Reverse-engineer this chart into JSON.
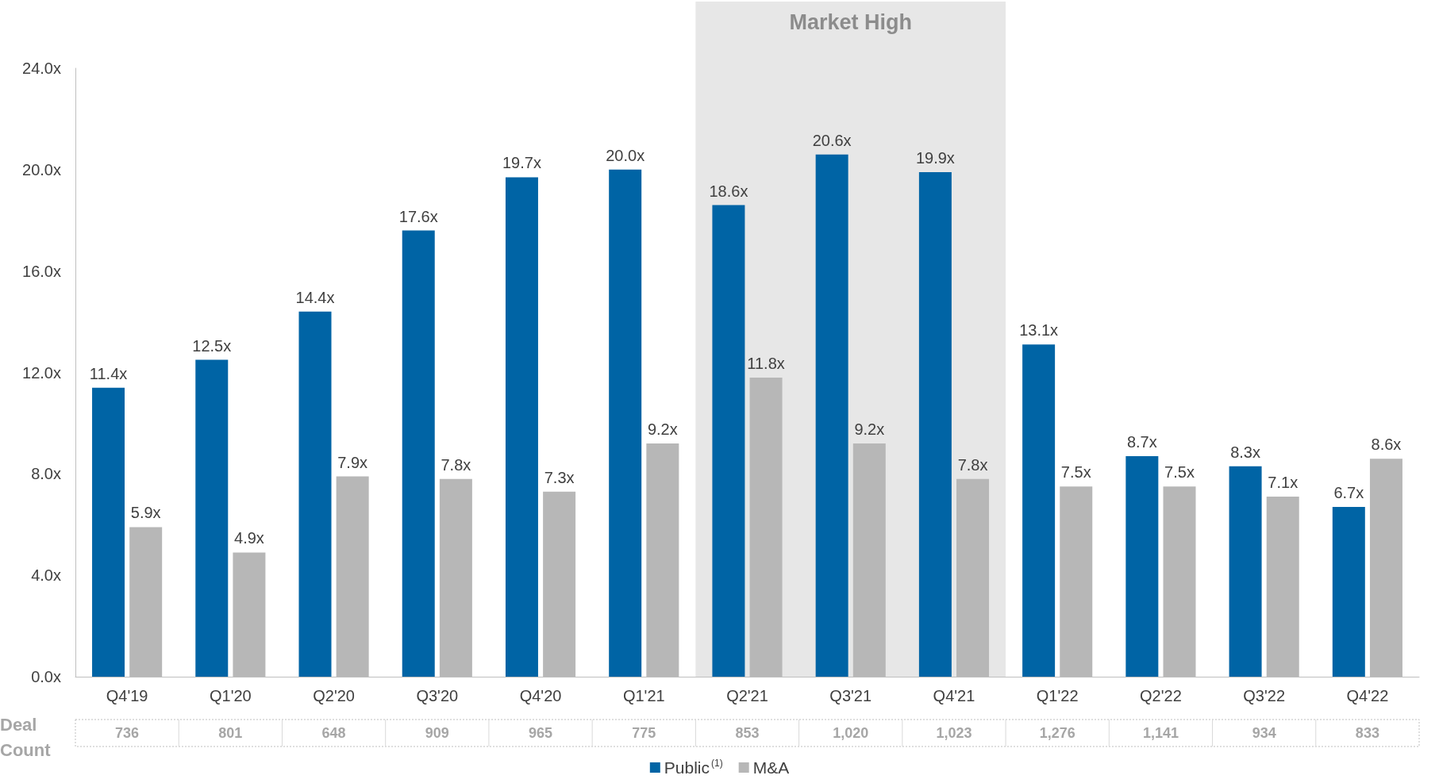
{
  "chart_data": {
    "type": "bar",
    "categories": [
      "Q4'19",
      "Q1'20",
      "Q2'20",
      "Q3'20",
      "Q4'20",
      "Q1'21",
      "Q2'21",
      "Q3'21",
      "Q4'21",
      "Q1'22",
      "Q2'22",
      "Q3'22",
      "Q4'22"
    ],
    "series": [
      {
        "name": "Public$^{(1)}$",
        "color": "#0064a5",
        "values": [
          11.4,
          12.5,
          14.4,
          17.6,
          19.7,
          20.0,
          18.6,
          20.6,
          19.9,
          13.1,
          8.7,
          8.3,
          6.7
        ],
        "value_labels": [
          "11.4x",
          "12.5x",
          "14.4x",
          "17.6x",
          "19.7x",
          "20.0x",
          "18.6x",
          "20.6x",
          "19.9x",
          "13.1x",
          "8.7x",
          "8.3x",
          "6.7x"
        ]
      },
      {
        "name": "M&A",
        "color": "#b7b7b7",
        "values": [
          5.9,
          4.9,
          7.9,
          7.8,
          7.3,
          9.2,
          11.8,
          9.2,
          7.8,
          7.5,
          7.5,
          7.1,
          8.6
        ],
        "value_labels": [
          "5.9x",
          "4.9x",
          "7.9x",
          "7.8x",
          "7.3x",
          "9.2x",
          "11.8x",
          "9.2x",
          "7.8x",
          "7.5x",
          "7.5x",
          "7.1x",
          "8.6x"
        ]
      }
    ],
    "ylim": [
      0,
      24
    ],
    "yticks": [
      {
        "value": 0,
        "label": "0.0x"
      },
      {
        "value": 4,
        "label": "4.0x"
      },
      {
        "value": 8,
        "label": "8.0x"
      },
      {
        "value": 12,
        "label": "12.0x"
      },
      {
        "value": 16,
        "label": "16.0x"
      },
      {
        "value": 20,
        "label": "20.0x"
      },
      {
        "value": 24,
        "label": "24.0x"
      }
    ],
    "bands": [
      {
        "axis": "x",
        "from": "Q2'21",
        "to": "Q4'21",
        "label": "Market High",
        "color": "#e7e7e7"
      }
    ],
    "annotations": [
      "Deal Count",
      "736",
      "801",
      "648",
      "909",
      "965",
      "775",
      "853",
      "1,020",
      "1,023",
      "1,276",
      "1,141",
      "934",
      "833"
    ],
    "grid": false,
    "legend": "bottom"
  }
}
